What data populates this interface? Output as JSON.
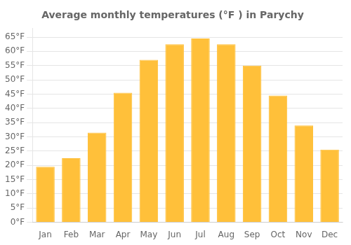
{
  "chart_data": {
    "type": "bar",
    "title": "Average monthly temperatures (°F ) in Parychy",
    "categories": [
      "Jan",
      "Feb",
      "Mar",
      "Apr",
      "May",
      "Jun",
      "Jul",
      "Aug",
      "Sep",
      "Oct",
      "Nov",
      "Dec"
    ],
    "values": [
      19.5,
      22.5,
      31.5,
      45.5,
      57.0,
      62.5,
      64.5,
      62.5,
      55.0,
      44.5,
      34.0,
      25.5
    ],
    "color": "#FFC03A",
    "ylim": [
      0,
      68
    ],
    "yticks": [
      {
        "value": 0,
        "label": "0°F"
      },
      {
        "value": 5,
        "label": "5°F"
      },
      {
        "value": 10,
        "label": "10°F"
      },
      {
        "value": 15,
        "label": "15°F"
      },
      {
        "value": 20,
        "label": "20°F"
      },
      {
        "value": 25,
        "label": "25°F"
      },
      {
        "value": 30,
        "label": "30°F"
      },
      {
        "value": 35,
        "label": "35°F"
      },
      {
        "value": 40,
        "label": "40°F"
      },
      {
        "value": 45,
        "label": "45°F"
      },
      {
        "value": 50,
        "label": "50°F"
      },
      {
        "value": 55,
        "label": "55°F"
      },
      {
        "value": 60,
        "label": "60°F"
      },
      {
        "value": 65,
        "label": "65°F"
      }
    ],
    "grid": true
  }
}
